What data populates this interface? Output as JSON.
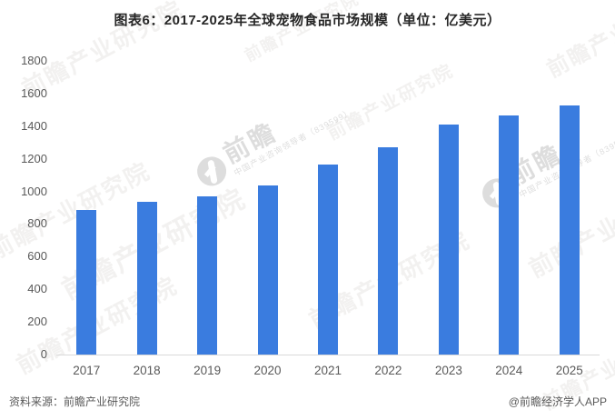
{
  "page_title": "图表6：2017-2025年全球宠物食品市场规模（单位：亿美元）",
  "chart_data": {
    "type": "bar",
    "title": "图表6：2017-2025年全球宠物食品市场规模（单位：亿美元）",
    "unit": "亿美元",
    "categories": [
      "2017",
      "2018",
      "2019",
      "2020",
      "2021",
      "2022",
      "2023",
      "2024",
      "2025"
    ],
    "values": [
      886,
      937,
      970,
      1037,
      1165,
      1270,
      1408,
      1464,
      1529
    ],
    "xlabel": "",
    "ylabel": "",
    "ylim": [
      0,
      1800
    ],
    "yticks": [
      0,
      200,
      400,
      600,
      800,
      1000,
      1200,
      1400,
      1600,
      1800
    ],
    "grid": false,
    "legend": false,
    "bar_color": "#3A7CDF"
  },
  "footer": {
    "source": "资料来源：前瞻产业研究院",
    "credit": "@前瞻经济学人APP"
  },
  "watermark": {
    "brand": "前瞻产业研究院",
    "logo": "前瞻",
    "tagline": "中国产业咨询领导者",
    "stock": "839599"
  },
  "colors": {
    "bar": "#3A7CDF",
    "axis_line": "#D9D9D9",
    "tick_text": "#595959",
    "title_text": "#262626",
    "footer_text": "#595959"
  }
}
